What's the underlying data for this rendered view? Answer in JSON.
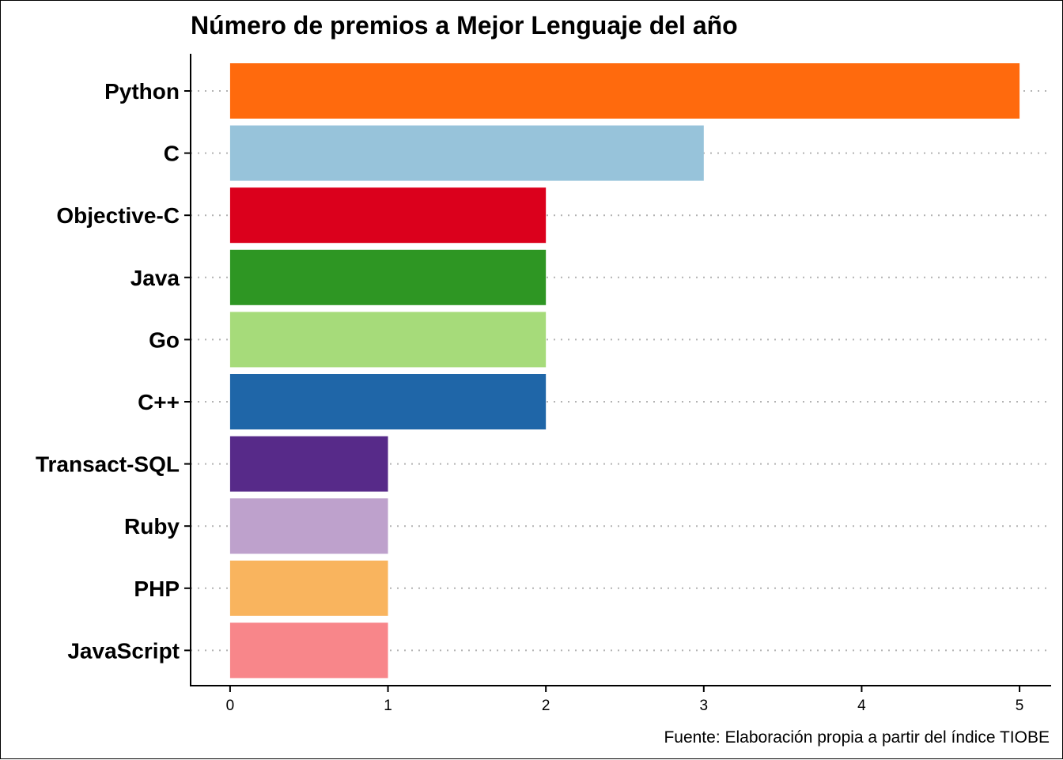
{
  "chart_data": {
    "type": "bar",
    "orientation": "horizontal",
    "title": "Número de premios a Mejor Lenguaje del año",
    "caption": "Fuente: Elaboración propia a partir del índice TIOBE",
    "xlabel": "",
    "ylabel": "",
    "categories": [
      "Python",
      "C",
      "Objective-C",
      "Java",
      "Go",
      "C++",
      "Transact-SQL",
      "Ruby",
      "PHP",
      "JavaScript"
    ],
    "values": [
      5,
      3,
      2,
      2,
      2,
      2,
      1,
      1,
      1,
      1
    ],
    "colors": [
      "#FF6A0D",
      "#97C3DA",
      "#DB001C",
      "#2E9623",
      "#A6DB7A",
      "#1F66A8",
      "#572A89",
      "#BEA1CC",
      "#F9B45E",
      "#F8868A"
    ],
    "xlim": [
      -0.25,
      5.2
    ],
    "xticks": [
      "0",
      "1",
      "2",
      "3",
      "4",
      "5"
    ],
    "grid": "dotted horizontal lines per category",
    "legend": "none"
  }
}
